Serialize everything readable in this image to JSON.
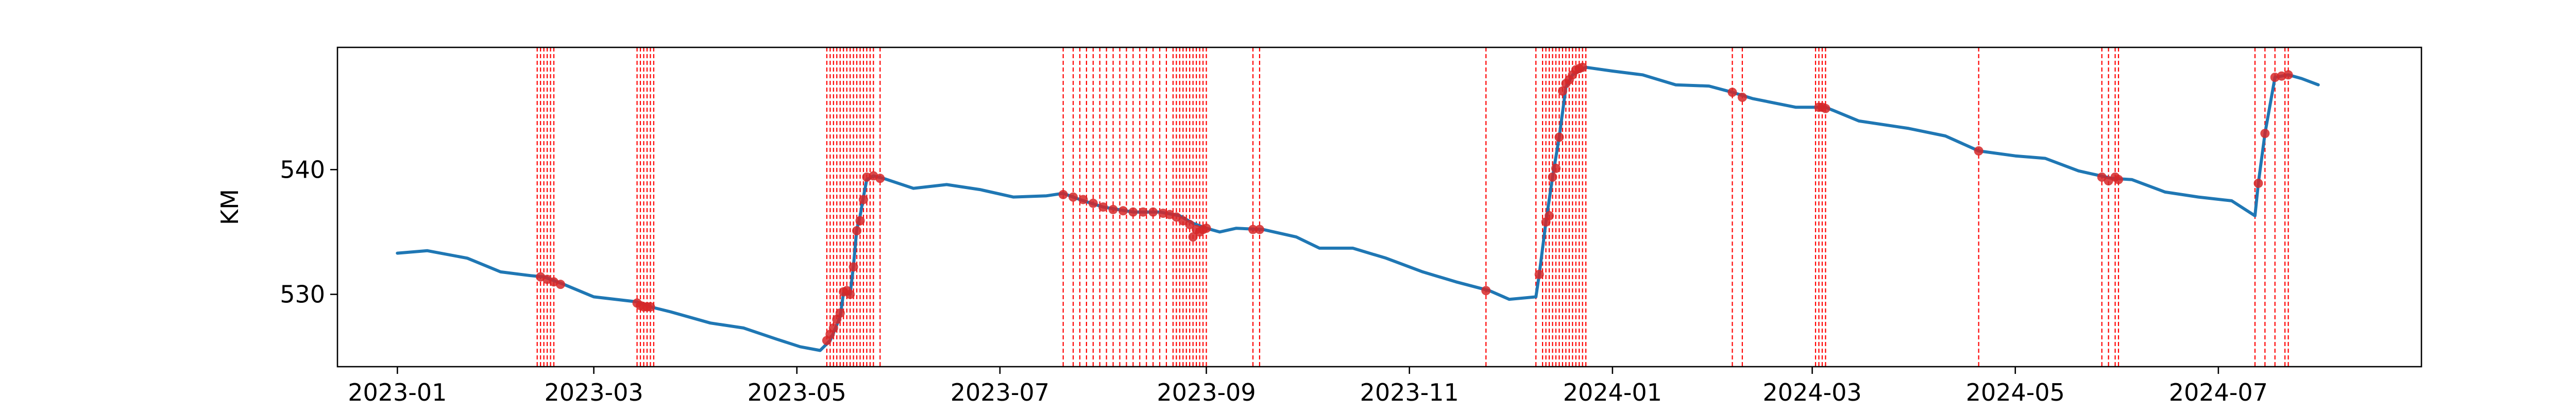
{
  "chart_data": {
    "type": "line",
    "title": "",
    "xlabel": "",
    "ylabel": "KM",
    "ylim": [
      524.2,
      549.8
    ],
    "xlim": [
      "2022-12-14",
      "2024-08-31"
    ],
    "grid": false,
    "legend": "none",
    "x_ticks": [
      "2023-01",
      "2023-03",
      "2023-05",
      "2023-07",
      "2023-09",
      "2023-11",
      "2024-01",
      "2024-03",
      "2024-05",
      "2024-07"
    ],
    "y_ticks": [
      530,
      540
    ],
    "series": [
      {
        "style": "line",
        "color": "#1f77b4",
        "points": [
          [
            "2023-01-01",
            533.3
          ],
          [
            "2023-01-10",
            533.5
          ],
          [
            "2023-01-22",
            532.9
          ],
          [
            "2023-02-01",
            531.8
          ],
          [
            "2023-02-10",
            531.5
          ],
          [
            "2023-02-14",
            531.4
          ],
          [
            "2023-02-20",
            530.8
          ],
          [
            "2023-03-01",
            529.8
          ],
          [
            "2023-03-14",
            529.4
          ],
          [
            "2023-03-18",
            529.0
          ],
          [
            "2023-03-24",
            528.6
          ],
          [
            "2023-04-05",
            527.7
          ],
          [
            "2023-04-15",
            527.3
          ],
          [
            "2023-04-25",
            526.4
          ],
          [
            "2023-05-02",
            525.8
          ],
          [
            "2023-05-08",
            525.5
          ],
          [
            "2023-05-11",
            526.3
          ],
          [
            "2023-05-12",
            526.9
          ],
          [
            "2023-05-14",
            528.2
          ],
          [
            "2023-05-15",
            530.1
          ],
          [
            "2023-05-17",
            530.0
          ],
          [
            "2023-05-18",
            532.3
          ],
          [
            "2023-05-19",
            535.2
          ],
          [
            "2023-05-20",
            536.3
          ],
          [
            "2023-05-21",
            537.8
          ],
          [
            "2023-05-22",
            539.2
          ],
          [
            "2023-05-24",
            539.5
          ],
          [
            "2023-05-27",
            539.3
          ],
          [
            "2023-06-05",
            538.5
          ],
          [
            "2023-06-15",
            538.8
          ],
          [
            "2023-06-25",
            538.4
          ],
          [
            "2023-07-05",
            537.8
          ],
          [
            "2023-07-15",
            537.9
          ],
          [
            "2023-07-20",
            538.1
          ],
          [
            "2023-07-25",
            537.6
          ],
          [
            "2023-08-01",
            537.0
          ],
          [
            "2023-08-10",
            536.6
          ],
          [
            "2023-08-18",
            536.6
          ],
          [
            "2023-08-24",
            536.3
          ],
          [
            "2023-08-28",
            535.7
          ],
          [
            "2023-09-01",
            535.3
          ],
          [
            "2023-09-05",
            535.0
          ],
          [
            "2023-09-10",
            535.3
          ],
          [
            "2023-09-18",
            535.2
          ],
          [
            "2023-09-28",
            534.6
          ],
          [
            "2023-10-05",
            533.7
          ],
          [
            "2023-10-15",
            533.7
          ],
          [
            "2023-10-25",
            532.9
          ],
          [
            "2023-11-05",
            531.8
          ],
          [
            "2023-11-15",
            531.0
          ],
          [
            "2023-11-25",
            530.3
          ],
          [
            "2023-12-01",
            529.6
          ],
          [
            "2023-12-05",
            529.7
          ],
          [
            "2023-12-09",
            529.8
          ],
          [
            "2023-12-10",
            531.6
          ],
          [
            "2023-12-12",
            535.8
          ],
          [
            "2023-12-14",
            539.4
          ],
          [
            "2023-12-16",
            542.6
          ],
          [
            "2023-12-18",
            546.6
          ],
          [
            "2023-12-20",
            547.6
          ],
          [
            "2023-12-24",
            548.2
          ],
          [
            "2024-01-01",
            547.9
          ],
          [
            "2024-01-10",
            547.6
          ],
          [
            "2024-01-20",
            546.8
          ],
          [
            "2024-01-30",
            546.7
          ],
          [
            "2024-02-06",
            546.2
          ],
          [
            "2024-02-12",
            545.7
          ],
          [
            "2024-02-25",
            545.0
          ],
          [
            "2024-03-05",
            545.0
          ],
          [
            "2024-03-15",
            543.9
          ],
          [
            "2024-03-30",
            543.3
          ],
          [
            "2024-04-10",
            542.7
          ],
          [
            "2024-04-20",
            541.5
          ],
          [
            "2024-05-01",
            541.1
          ],
          [
            "2024-05-10",
            540.9
          ],
          [
            "2024-05-20",
            539.9
          ],
          [
            "2024-05-30",
            539.3
          ],
          [
            "2024-06-05",
            539.2
          ],
          [
            "2024-06-15",
            538.2
          ],
          [
            "2024-06-25",
            537.8
          ],
          [
            "2024-07-05",
            537.5
          ],
          [
            "2024-07-12",
            536.3
          ],
          [
            "2024-07-13",
            538.9
          ],
          [
            "2024-07-15",
            542.9
          ],
          [
            "2024-07-18",
            547.4
          ],
          [
            "2024-07-22",
            547.6
          ],
          [
            "2024-07-26",
            547.3
          ],
          [
            "2024-07-31",
            546.8
          ]
        ]
      },
      {
        "style": "markers",
        "color": "#d62728",
        "points": [
          [
            "2023-02-13",
            531.4
          ],
          [
            "2023-02-15",
            531.2
          ],
          [
            "2023-02-17",
            531.0
          ],
          [
            "2023-02-19",
            530.8
          ],
          [
            "2023-03-14",
            529.3
          ],
          [
            "2023-03-15",
            529.1
          ],
          [
            "2023-03-16",
            529.0
          ],
          [
            "2023-03-17",
            529.0
          ],
          [
            "2023-03-18",
            529.0
          ],
          [
            "2023-05-10",
            526.3
          ],
          [
            "2023-05-11",
            526.8
          ],
          [
            "2023-05-12",
            527.3
          ],
          [
            "2023-05-13",
            528.0
          ],
          [
            "2023-05-14",
            528.5
          ],
          [
            "2023-05-15",
            530.2
          ],
          [
            "2023-05-16",
            530.3
          ],
          [
            "2023-05-17",
            530.0
          ],
          [
            "2023-05-18",
            532.2
          ],
          [
            "2023-05-19",
            535.1
          ],
          [
            "2023-05-20",
            535.9
          ],
          [
            "2023-05-21",
            537.6
          ],
          [
            "2023-05-22",
            539.4
          ],
          [
            "2023-05-24",
            539.5
          ],
          [
            "2023-05-26",
            539.3
          ],
          [
            "2023-07-20",
            538.0
          ],
          [
            "2023-07-23",
            537.8
          ],
          [
            "2023-07-26",
            537.6
          ],
          [
            "2023-07-29",
            537.3
          ],
          [
            "2023-08-01",
            537.0
          ],
          [
            "2023-08-04",
            536.8
          ],
          [
            "2023-08-07",
            536.7
          ],
          [
            "2023-08-10",
            536.6
          ],
          [
            "2023-08-13",
            536.6
          ],
          [
            "2023-08-16",
            536.6
          ],
          [
            "2023-08-19",
            536.5
          ],
          [
            "2023-08-21",
            536.4
          ],
          [
            "2023-08-23",
            536.2
          ],
          [
            "2023-08-25",
            535.9
          ],
          [
            "2023-08-27",
            535.6
          ],
          [
            "2023-08-28",
            534.6
          ],
          [
            "2023-08-29",
            535.2
          ],
          [
            "2023-08-30",
            535.0
          ],
          [
            "2023-08-31",
            535.2
          ],
          [
            "2023-09-01",
            535.3
          ],
          [
            "2023-09-15",
            535.2
          ],
          [
            "2023-09-17",
            535.2
          ],
          [
            "2023-11-24",
            530.3
          ],
          [
            "2023-12-10",
            531.6
          ],
          [
            "2023-12-12",
            535.8
          ],
          [
            "2023-12-13",
            536.3
          ],
          [
            "2023-12-14",
            539.4
          ],
          [
            "2023-12-15",
            540.1
          ],
          [
            "2023-12-16",
            542.6
          ],
          [
            "2023-12-17",
            546.3
          ],
          [
            "2023-12-18",
            546.9
          ],
          [
            "2023-12-19",
            547.2
          ],
          [
            "2023-12-20",
            547.6
          ],
          [
            "2023-12-21",
            548.0
          ],
          [
            "2023-12-22",
            548.1
          ],
          [
            "2023-12-23",
            548.2
          ],
          [
            "2024-02-06",
            546.2
          ],
          [
            "2024-02-09",
            545.8
          ],
          [
            "2024-03-03",
            545.0
          ],
          [
            "2024-03-04",
            545.0
          ],
          [
            "2024-03-05",
            544.9
          ],
          [
            "2024-04-20",
            541.5
          ],
          [
            "2024-05-27",
            539.4
          ],
          [
            "2024-05-29",
            539.1
          ],
          [
            "2024-05-31",
            539.4
          ],
          [
            "2024-06-01",
            539.2
          ],
          [
            "2024-07-13",
            538.9
          ],
          [
            "2024-07-15",
            542.9
          ],
          [
            "2024-07-18",
            547.4
          ],
          [
            "2024-07-20",
            547.5
          ],
          [
            "2024-07-22",
            547.6
          ]
        ]
      },
      {
        "style": "vlines",
        "color": "#ff0000",
        "x": [
          "2023-02-12",
          "2023-02-13",
          "2023-02-14",
          "2023-02-15",
          "2023-02-16",
          "2023-02-17",
          "2023-03-14",
          "2023-03-15",
          "2023-03-16",
          "2023-03-17",
          "2023-03-18",
          "2023-03-19",
          "2023-05-10",
          "2023-05-11",
          "2023-05-12",
          "2023-05-13",
          "2023-05-14",
          "2023-05-15",
          "2023-05-16",
          "2023-05-17",
          "2023-05-18",
          "2023-05-19",
          "2023-05-20",
          "2023-05-21",
          "2023-05-22",
          "2023-05-23",
          "2023-05-24",
          "2023-05-26",
          "2023-07-20",
          "2023-07-23",
          "2023-07-25",
          "2023-07-27",
          "2023-07-29",
          "2023-07-31",
          "2023-08-02",
          "2023-08-04",
          "2023-08-06",
          "2023-08-08",
          "2023-08-10",
          "2023-08-12",
          "2023-08-14",
          "2023-08-16",
          "2023-08-18",
          "2023-08-20",
          "2023-08-22",
          "2023-08-23",
          "2023-08-24",
          "2023-08-25",
          "2023-08-26",
          "2023-08-27",
          "2023-08-28",
          "2023-08-29",
          "2023-08-30",
          "2023-08-31",
          "2023-09-01",
          "2023-09-15",
          "2023-09-17",
          "2023-11-24",
          "2023-12-09",
          "2023-12-11",
          "2023-12-12",
          "2023-12-13",
          "2023-12-14",
          "2023-12-15",
          "2023-12-16",
          "2023-12-17",
          "2023-12-18",
          "2023-12-19",
          "2023-12-20",
          "2023-12-21",
          "2023-12-22",
          "2023-12-23",
          "2023-12-24",
          "2024-02-06",
          "2024-02-09",
          "2024-03-02",
          "2024-03-03",
          "2024-03-04",
          "2024-03-05",
          "2024-04-20",
          "2024-05-27",
          "2024-05-29",
          "2024-05-31",
          "2024-06-01",
          "2024-07-12",
          "2024-07-15",
          "2024-07-18",
          "2024-07-21",
          "2024-07-22"
        ]
      }
    ]
  }
}
